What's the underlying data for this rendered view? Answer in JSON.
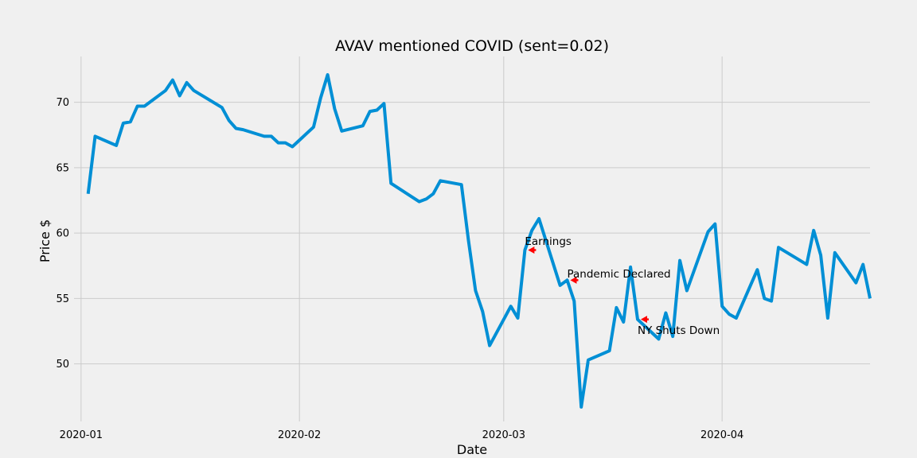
{
  "chart_data": {
    "type": "line",
    "title": "AVAV mentioned COVID (sent=0.02)",
    "xlabel": "Date",
    "ylabel": "Price $",
    "xlim": [
      "2019-12-31",
      "2020-04-22"
    ],
    "ylim": [
      45.6,
      73.5
    ],
    "x_ticks": [
      "2020-01-01",
      "2020-02-01",
      "2020-03-01",
      "2020-04-01"
    ],
    "x_tick_labels": [
      "2020-01",
      "2020-02",
      "2020-03",
      "2020-04"
    ],
    "y_ticks": [
      50,
      55,
      60,
      65,
      70
    ],
    "grid": true,
    "line_color": "#008fd5",
    "arrow_color": "#ff0000",
    "series": [
      {
        "x": [
          "2020-01-02",
          "2020-01-03",
          "2020-01-06",
          "2020-01-07",
          "2020-01-08",
          "2020-01-09",
          "2020-01-10",
          "2020-01-13",
          "2020-01-14",
          "2020-01-15",
          "2020-01-16",
          "2020-01-17",
          "2020-01-21",
          "2020-01-22",
          "2020-01-23",
          "2020-01-24",
          "2020-01-27",
          "2020-01-28",
          "2020-01-29",
          "2020-01-30",
          "2020-01-31",
          "2020-02-03",
          "2020-02-04",
          "2020-02-05",
          "2020-02-06",
          "2020-02-07",
          "2020-02-10",
          "2020-02-11",
          "2020-02-12",
          "2020-02-13",
          "2020-02-14",
          "2020-02-18",
          "2020-02-19",
          "2020-02-20",
          "2020-02-21",
          "2020-02-24",
          "2020-02-25",
          "2020-02-26",
          "2020-02-27",
          "2020-02-28",
          "2020-03-02",
          "2020-03-03",
          "2020-03-04",
          "2020-03-05",
          "2020-03-06",
          "2020-03-09",
          "2020-03-10",
          "2020-03-11",
          "2020-03-12",
          "2020-03-13",
          "2020-03-16",
          "2020-03-17",
          "2020-03-18",
          "2020-03-19",
          "2020-03-20",
          "2020-03-23",
          "2020-03-24",
          "2020-03-25",
          "2020-03-26",
          "2020-03-27",
          "2020-03-30",
          "2020-03-31",
          "2020-04-01",
          "2020-04-02",
          "2020-04-03",
          "2020-04-06",
          "2020-04-07",
          "2020-04-08",
          "2020-04-09",
          "2020-04-13",
          "2020-04-14",
          "2020-04-15",
          "2020-04-16",
          "2020-04-17",
          "2020-04-20",
          "2020-04-21",
          "2020-04-22"
        ],
        "y": [
          63.0,
          67.4,
          66.7,
          68.4,
          68.5,
          69.7,
          69.7,
          70.9,
          71.7,
          70.5,
          71.5,
          70.9,
          69.6,
          68.6,
          68.0,
          67.9,
          67.4,
          67.4,
          66.9,
          66.9,
          66.6,
          68.1,
          70.3,
          72.1,
          69.5,
          67.8,
          68.2,
          69.3,
          69.4,
          69.9,
          63.8,
          62.4,
          62.6,
          63.0,
          64.0,
          63.7,
          59.4,
          55.6,
          54.0,
          51.4,
          54.4,
          53.5,
          58.7,
          60.2,
          61.1,
          56.0,
          56.4,
          54.8,
          46.7,
          50.3,
          51.0,
          54.3,
          53.2,
          57.4,
          53.4,
          51.9,
          53.9,
          52.1,
          57.9,
          55.6,
          60.1,
          60.7,
          54.4,
          53.8,
          53.5,
          57.2,
          55.0,
          54.8,
          58.9,
          57.6,
          60.2,
          58.3,
          53.5,
          58.5,
          56.2,
          57.6,
          55.0
        ]
      }
    ],
    "annotations": [
      {
        "text": "Earnings",
        "x": "2020-03-04",
        "y": 58.7,
        "text_x": "2020-03-04",
        "text_y": 59.4
      },
      {
        "text": "Pandemic Declared",
        "x": "2020-03-10",
        "y": 56.4,
        "text_x": "2020-03-10",
        "text_y": 56.9
      },
      {
        "text": "NY Shuts Down",
        "x": "2020-03-20",
        "y": 53.4,
        "text_x": "2020-03-20",
        "text_y": 52.6
      }
    ]
  }
}
